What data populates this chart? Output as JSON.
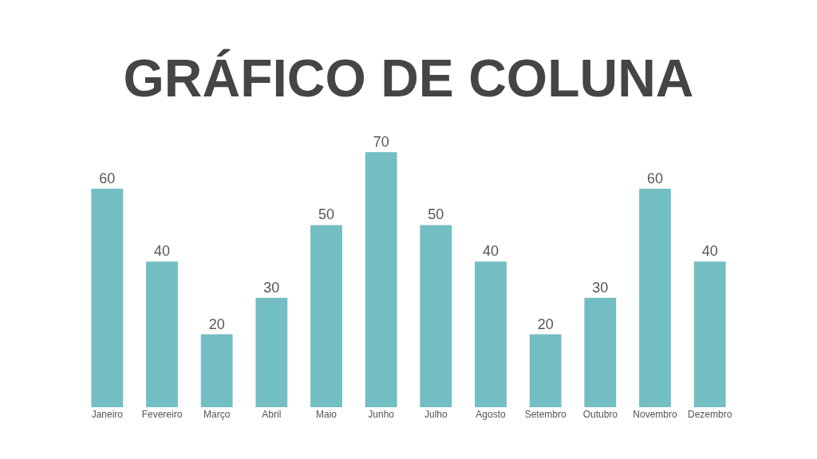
{
  "chart_data": {
    "type": "bar",
    "title": "GRÁFICO DE COLUNA",
    "categories": [
      "Janeiro",
      "Fevereiro",
      "Março",
      "Abril",
      "Maio",
      "Junho",
      "Julho",
      "Agosto",
      "Setembro",
      "Outubro",
      "Novembro",
      "Dezembro"
    ],
    "values": [
      60,
      40,
      20,
      30,
      50,
      70,
      50,
      40,
      20,
      30,
      60,
      40
    ],
    "color": "#73bec2",
    "data_labels": true
  }
}
